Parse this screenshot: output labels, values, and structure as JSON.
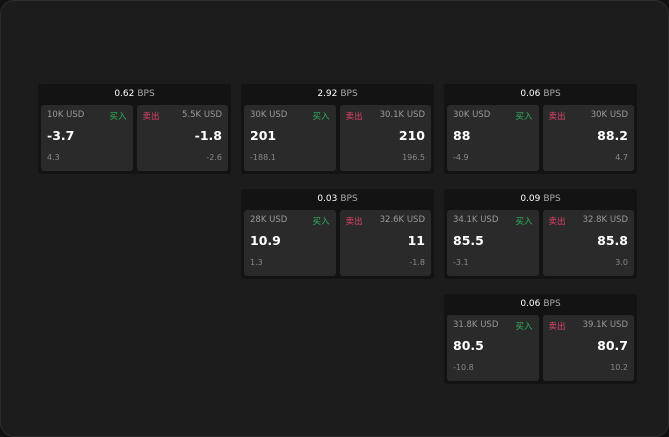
{
  "unit": "BPS",
  "buy_label": "买入",
  "sell_label": "卖出",
  "colors": {
    "buy": "#2fb560",
    "sell": "#e0436b"
  },
  "cards": [
    {
      "spread": "0.62",
      "buy": {
        "size": "10K USD",
        "price": "-3.7",
        "change": "4.3"
      },
      "sell": {
        "size": "5.5K USD",
        "price": "-1.8",
        "change": "-2.6"
      }
    },
    {
      "spread": "2.92",
      "buy": {
        "size": "30K USD",
        "price": "201",
        "change": "-188.1"
      },
      "sell": {
        "size": "30.1K USD",
        "price": "210",
        "change": "196.5"
      }
    },
    {
      "spread": "0.06",
      "buy": {
        "size": "30K USD",
        "price": "88",
        "change": "-4.9"
      },
      "sell": {
        "size": "30K USD",
        "price": "88.2",
        "change": "4.7"
      }
    },
    {
      "spread": "0.03",
      "buy": {
        "size": "28K USD",
        "price": "10.9",
        "change": "1.3"
      },
      "sell": {
        "size": "32.6K USD",
        "price": "11",
        "change": "-1.8"
      }
    },
    {
      "spread": "0.09",
      "buy": {
        "size": "34.1K USD",
        "price": "85.5",
        "change": "-3.1"
      },
      "sell": {
        "size": "32.8K USD",
        "price": "85.8",
        "change": "3.0"
      }
    },
    {
      "spread": "0.06",
      "buy": {
        "size": "31.8K USD",
        "price": "80.5",
        "change": "-10.8"
      },
      "sell": {
        "size": "39.1K USD",
        "price": "80.7",
        "change": "10.2"
      }
    }
  ]
}
